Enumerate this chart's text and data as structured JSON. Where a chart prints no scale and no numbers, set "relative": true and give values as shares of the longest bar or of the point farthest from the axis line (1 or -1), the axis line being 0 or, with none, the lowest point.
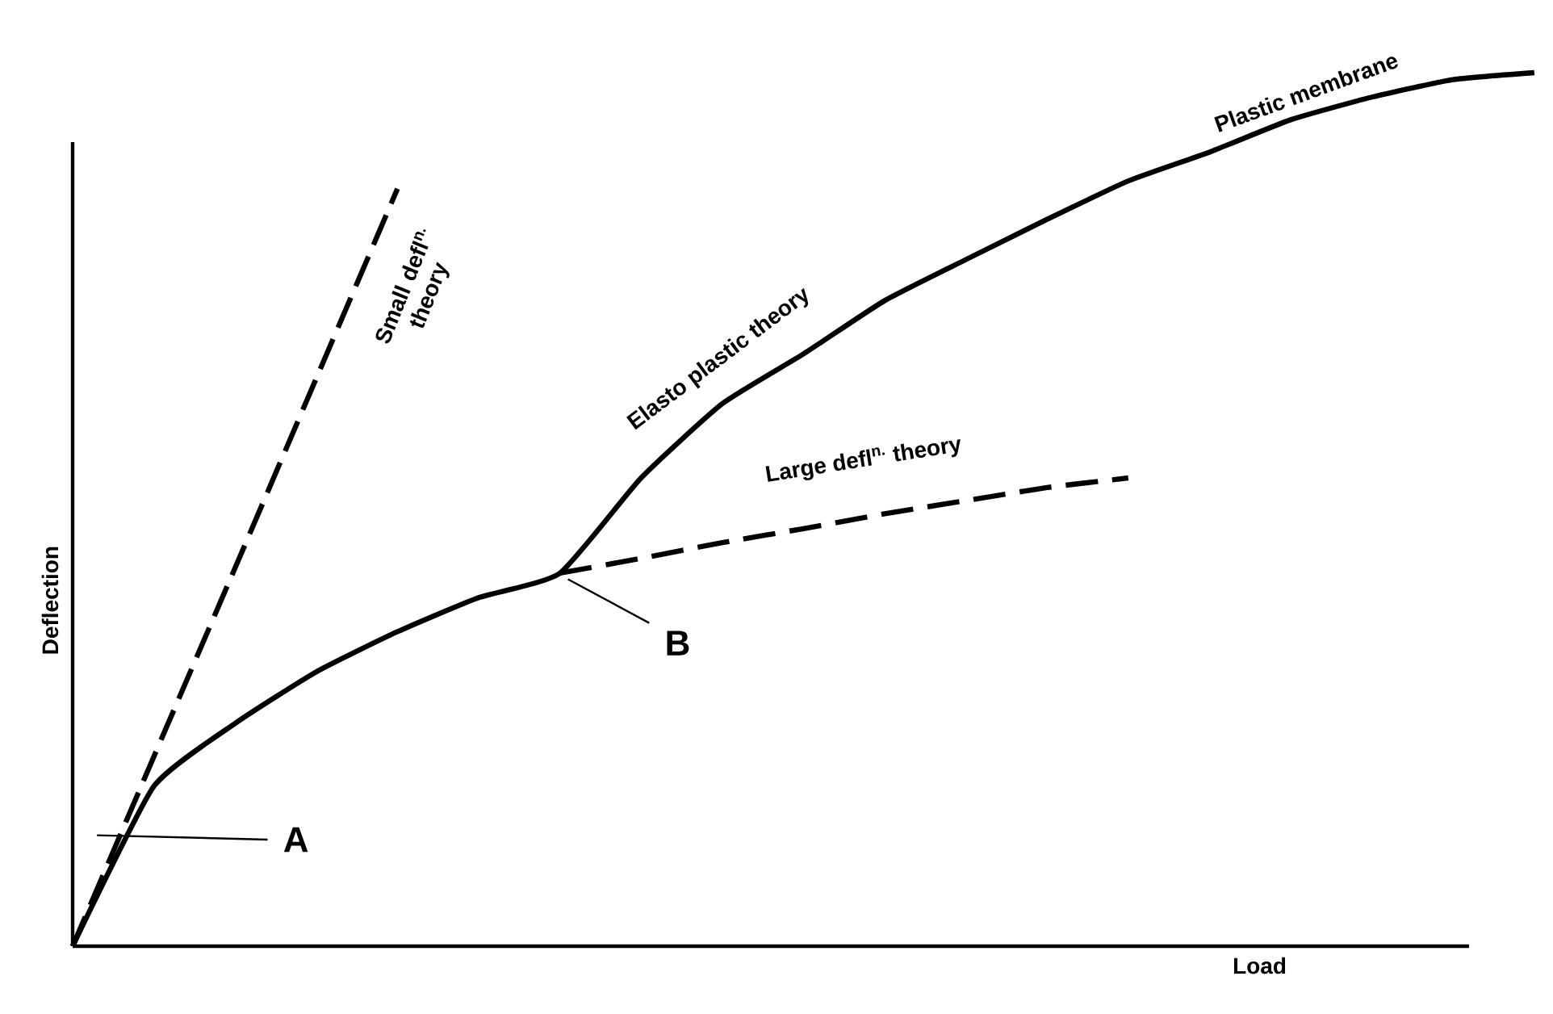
{
  "chart_data": {
    "type": "line",
    "relative": true,
    "xlabel": "Load",
    "ylabel": "Deflection",
    "categories": [
      null,
      null,
      null,
      null,
      null,
      null,
      null,
      null,
      null,
      null,
      null,
      null,
      null,
      null,
      null,
      null,
      null,
      null,
      null
    ],
    "series": [
      {
        "color": "#000000",
        "line_style": "solid",
        "values": [
          0,
          0.183,
          0.255,
          0.314,
          0.36,
          0.399,
          0.427,
          0.536,
          0.621,
          0.678,
          0.739,
          0.786,
          0.832,
          0.876,
          0.909,
          0.946,
          0.972,
          0.992,
          1
        ]
      },
      {
        "name": "Small defl$^{n.}$ theory",
        "color": "#000000",
        "line_style": "dashed",
        "values": [
          0,
          0.217,
          0.433,
          0.65,
          0.867,
          null,
          null,
          null,
          null,
          null,
          null,
          null,
          null,
          null,
          null,
          null,
          null,
          null,
          null
        ]
      },
      {
        "name": "Large defl$^{n.}$ theory",
        "color": "#000000",
        "line_style": "dashed",
        "values": [
          null,
          null,
          null,
          null,
          null,
          null,
          0.427,
          0.444,
          0.462,
          0.478,
          0.495,
          0.51,
          0.525,
          0.536,
          null,
          null,
          null,
          null,
          null
        ]
      }
    ],
    "annotations": [
      "Elasto plastic theory",
      "Plastic membrane",
      "A",
      "B"
    ]
  }
}
